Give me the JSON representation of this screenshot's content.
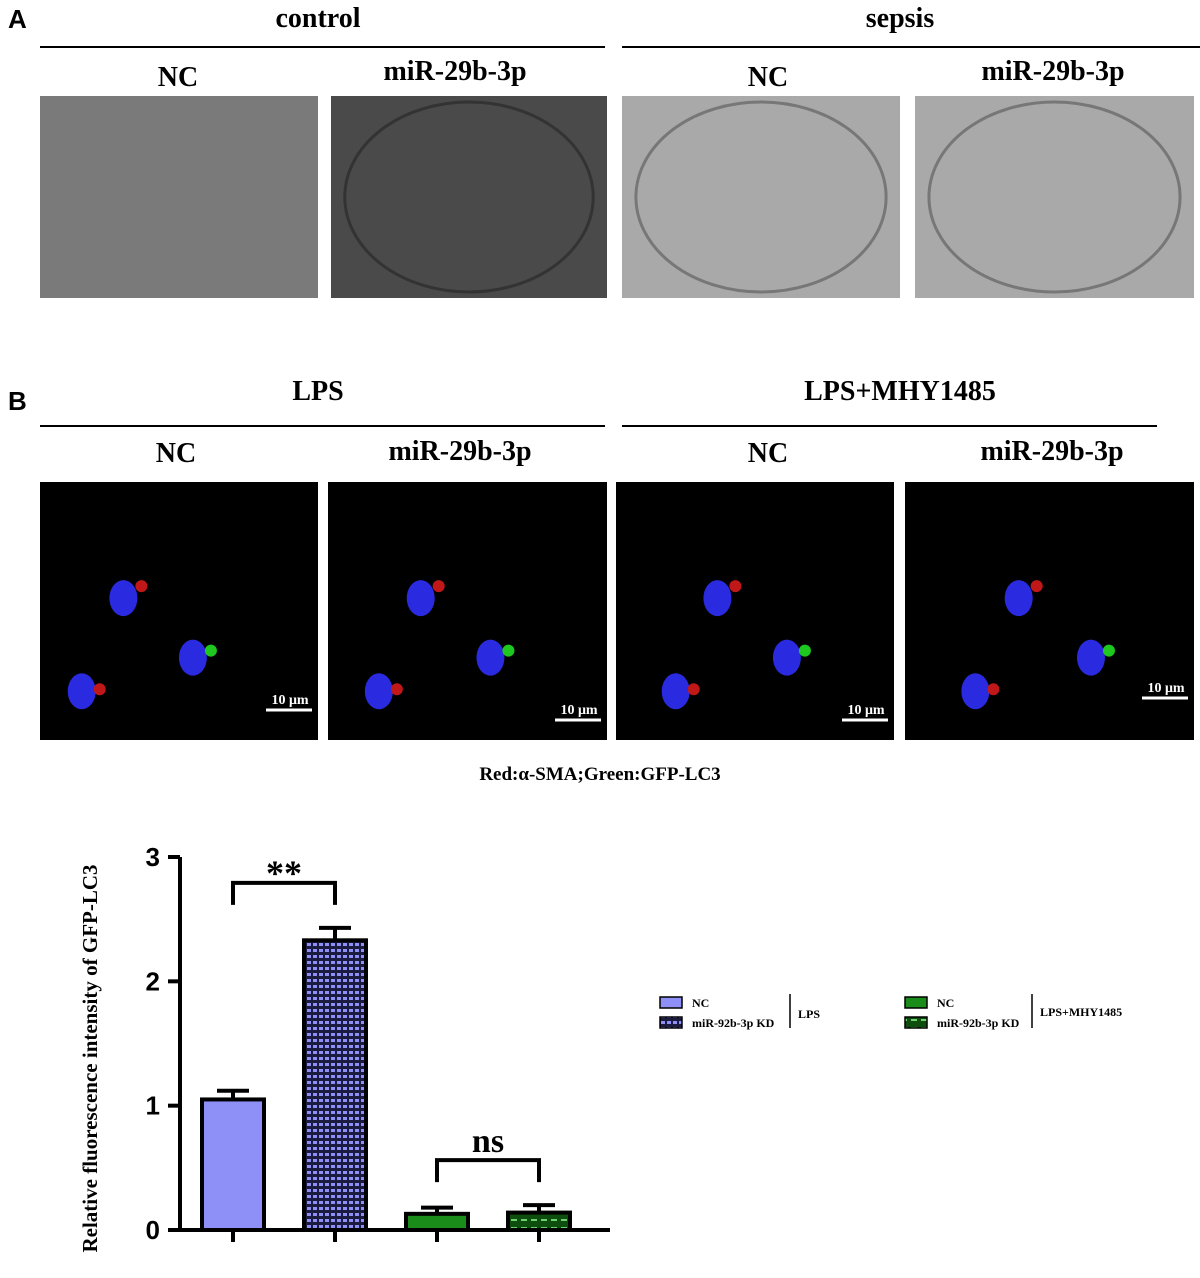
{
  "panel_a": {
    "label": "A",
    "groups": [
      {
        "title": "control",
        "columns": [
          "NC",
          "miR-29b-3p"
        ]
      },
      {
        "title": "sepsis",
        "columns": [
          "NC",
          "miR-29b-3p"
        ]
      }
    ]
  },
  "panel_b": {
    "label": "B",
    "groups": [
      {
        "title": "LPS",
        "columns": [
          "NC",
          "miR-29b-3p"
        ]
      },
      {
        "title": "LPS+MHY1485",
        "columns": [
          "NC",
          "miR-29b-3p"
        ]
      }
    ],
    "scale_bars": [
      "10 μm",
      "10 μm",
      "10 μm",
      "10 μm"
    ],
    "caption": "Red:α-SMA;Green:GFP-LC3"
  },
  "chart_data": {
    "type": "bar",
    "y_label": "Relative fluorescence intensity of GFP-LC3",
    "categories": [
      null
    ],
    "ylim": [
      0,
      3
    ],
    "yticks": [
      0,
      1,
      2,
      3
    ],
    "legend_groups": [
      "LPS",
      "LPS+MHY1485"
    ],
    "series": [
      {
        "name": "NC",
        "color": "#8f8ff8",
        "pattern": "solid",
        "values": [
          1.05
        ],
        "errors": [
          0.07
        ]
      },
      {
        "name": "miR-92b-3p KD",
        "color": "#8f8ff8",
        "pattern": "hatch",
        "values": [
          2.33
        ],
        "errors": [
          0.1
        ]
      },
      {
        "name": "NC",
        "color": "#1a8c1a",
        "pattern": "solid",
        "values": [
          0.13
        ],
        "errors": [
          0.05
        ]
      },
      {
        "name": "miR-92b-3p KD",
        "color": "#1a8c1a",
        "pattern": "hatch",
        "values": [
          0.14
        ],
        "errors": [
          0.06
        ]
      }
    ],
    "annotations": [
      {
        "text": "**",
        "series": [
          0,
          1
        ]
      },
      {
        "text": "ns",
        "series": [
          2,
          3
        ]
      }
    ]
  }
}
